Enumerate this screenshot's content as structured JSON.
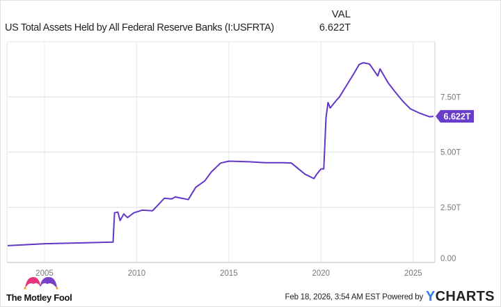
{
  "header": {
    "column_label": "VAL",
    "series_title": "US Total Assets Held by All Federal Reserve Banks (I:USFRTA)",
    "current_value": "6.622T"
  },
  "footer": {
    "timestamp": "Feb 18, 2026, 3:54 AM EST",
    "powered_by": "Powered by",
    "brand_y": "Y",
    "brand_rest": "CHARTS",
    "logo_text": "The Motley Fool"
  },
  "colors": {
    "line": "#6236c8",
    "label_bg": "#6a3ccc",
    "grid": "#e8e8e8",
    "ycharts_blue": "#2b7de9"
  },
  "chart_data": {
    "type": "line",
    "title": "US Total Assets Held by All Federal Reserve Banks (I:USFRTA)",
    "xlim": [
      2003.0,
      2026.18
    ],
    "ylim": [
      0,
      10.0
    ],
    "x_ticks": [
      2005,
      2010,
      2015,
      2020,
      2025
    ],
    "x_tick_labels": [
      "2005",
      "2010",
      "2015",
      "2020",
      "2025"
    ],
    "y_ticks": [
      0,
      2.5,
      5,
      7.5
    ],
    "y_tick_labels": [
      "0.00",
      "2.50T",
      "5.00T",
      "7.50T"
    ],
    "grid": true,
    "last_value_label": "6.622T",
    "series": [
      {
        "values_unit": "trillions USD",
        "points": [
          [
            2003.0,
            0.76
          ],
          [
            2005.0,
            0.85
          ],
          [
            2008.72,
            0.92
          ],
          [
            2008.8,
            2.25
          ],
          [
            2008.98,
            2.28
          ],
          [
            2009.1,
            1.9
          ],
          [
            2009.3,
            2.2
          ],
          [
            2009.5,
            2.03
          ],
          [
            2009.85,
            2.25
          ],
          [
            2010.3,
            2.37
          ],
          [
            2010.86,
            2.34
          ],
          [
            2011.5,
            2.91
          ],
          [
            2011.9,
            2.88
          ],
          [
            2012.1,
            2.97
          ],
          [
            2012.8,
            2.85
          ],
          [
            2013.2,
            3.4
          ],
          [
            2013.7,
            3.7
          ],
          [
            2014.05,
            4.1
          ],
          [
            2014.55,
            4.5
          ],
          [
            2015.0,
            4.59
          ],
          [
            2016.1,
            4.56
          ],
          [
            2017.0,
            4.52
          ],
          [
            2018.0,
            4.52
          ],
          [
            2018.4,
            4.5
          ],
          [
            2019.13,
            4.0
          ],
          [
            2019.62,
            3.8
          ],
          [
            2019.77,
            4.0
          ],
          [
            2020.0,
            4.24
          ],
          [
            2020.15,
            4.24
          ],
          [
            2020.27,
            6.55
          ],
          [
            2020.38,
            7.25
          ],
          [
            2020.5,
            7.0
          ],
          [
            2020.83,
            7.34
          ],
          [
            2021.0,
            7.5
          ],
          [
            2021.4,
            8.04
          ],
          [
            2021.77,
            8.54
          ],
          [
            2022.07,
            8.97
          ],
          [
            2022.3,
            9.05
          ],
          [
            2022.63,
            8.99
          ],
          [
            2023.08,
            8.45
          ],
          [
            2023.2,
            8.77
          ],
          [
            2023.65,
            8.13
          ],
          [
            2024.0,
            7.75
          ],
          [
            2024.4,
            7.34
          ],
          [
            2024.85,
            6.96
          ],
          [
            2025.34,
            6.77
          ],
          [
            2025.9,
            6.6
          ],
          [
            2026.1,
            6.622
          ]
        ]
      }
    ]
  }
}
